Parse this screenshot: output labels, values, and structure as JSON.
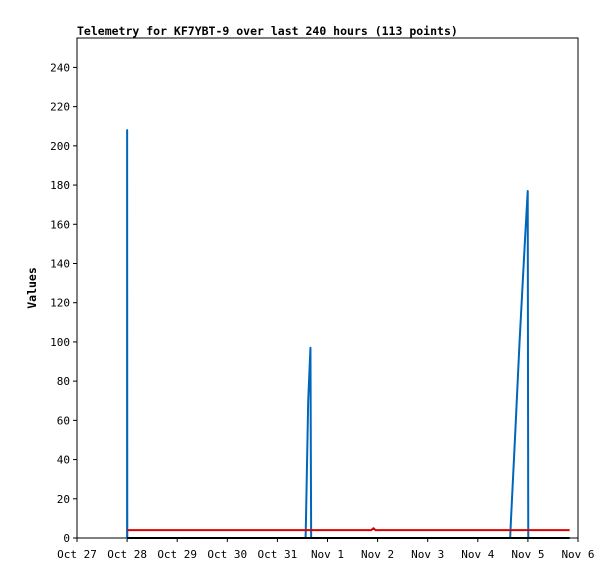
{
  "chart_data": {
    "type": "line",
    "title": "Telemetry for KF7YBT-9 over last 240 hours (113 points)",
    "xlabel": "",
    "ylabel": "Values",
    "x_axis": {
      "type": "date",
      "range": [
        "2023-10-27",
        "2023-11-06"
      ],
      "tick_labels": [
        "Oct 27",
        "Oct 28",
        "Oct 29",
        "Oct 30",
        "Oct 31",
        "Nov 1",
        "Nov 2",
        "Nov 3",
        "Nov 4",
        "Nov 5",
        "Nov 6"
      ]
    },
    "y_axis": {
      "range": [
        0,
        255
      ],
      "ticks": [
        0,
        20,
        40,
        60,
        80,
        100,
        120,
        140,
        160,
        180,
        200,
        220,
        240
      ]
    },
    "grid": false,
    "legend": "none",
    "series": [
      {
        "color": "#0066bb",
        "points": [
          [
            "2023-10-28 00:00",
            0
          ],
          [
            "2023-10-28 00:01",
            208
          ],
          [
            "2023-10-28 00:05",
            0
          ],
          [
            "2023-10-31 13:30",
            0
          ],
          [
            "2023-10-31 13:40",
            8
          ],
          [
            "2023-10-31 14:45",
            70
          ],
          [
            "2023-10-31 15:50",
            97
          ],
          [
            "2023-10-31 16:10",
            0
          ],
          [
            "2023-11-04 15:30",
            0
          ],
          [
            "2023-11-04 15:50",
            8
          ],
          [
            "2023-11-04 18:00",
            55
          ],
          [
            "2023-11-04 20:00",
            100
          ],
          [
            "2023-11-04 22:30",
            150
          ],
          [
            "2023-11-04 23:55",
            177
          ],
          [
            "2023-11-05 00:10",
            0
          ]
        ]
      },
      {
        "color": "#dd0000",
        "points": [
          [
            "2023-10-28 00:00",
            4
          ],
          [
            "2023-11-01 21:00",
            4
          ],
          [
            "2023-11-01 22:00",
            5
          ],
          [
            "2023-11-01 23:00",
            4
          ],
          [
            "2023-11-05 20:00",
            4
          ]
        ]
      },
      {
        "color": "#000000",
        "points": [
          [
            "2023-10-28 00:00",
            0
          ],
          [
            "2023-11-05 20:00",
            0
          ]
        ]
      }
    ]
  }
}
